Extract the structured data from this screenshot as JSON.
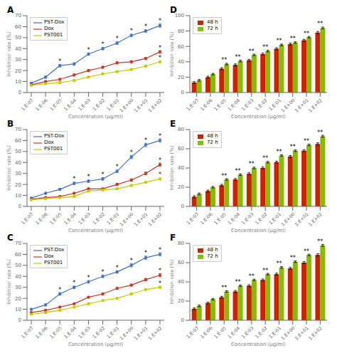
{
  "chart_data": [
    {
      "type": "line",
      "title": "A",
      "xlabel": "Concentration (μg/ml)",
      "ylabel": "Inhibition rate (%)",
      "categories": [
        "1.E-07",
        "1.E-06",
        "1.E-05",
        "1.E-04",
        "1.E-03",
        "1.E-02",
        "1.E-01",
        "1.E+00",
        "1.E+01",
        "1.E+02"
      ],
      "series": [
        {
          "name": "PST-Dox",
          "color": "#4472c4",
          "marker": "o",
          "values": [
            8.5,
            14,
            24.5,
            26,
            35,
            40,
            45,
            52,
            56,
            61
          ],
          "errors": [
            0.8,
            1.0,
            1.2,
            1.2,
            1.2,
            1.2,
            1.2,
            1.2,
            1.2,
            1.5
          ]
        },
        {
          "name": "Dox",
          "color": "#c0392b",
          "marker": "o",
          "values": [
            7,
            10,
            12,
            16,
            20,
            23,
            27,
            28,
            31,
            37
          ],
          "errors": [
            0.8,
            0.8,
            1.0,
            1.0,
            1.0,
            1.0,
            1.0,
            1.0,
            1.0,
            1.2
          ]
        },
        {
          "name": "PST001",
          "color": "#c8c800",
          "marker": "o",
          "values": [
            6.5,
            8,
            9,
            11,
            14,
            17,
            19,
            21,
            24,
            28
          ],
          "errors": [
            0.6,
            0.6,
            0.8,
            0.8,
            0.8,
            0.8,
            0.8,
            0.8,
            0.8,
            1.0
          ]
        }
      ],
      "annotations": [
        {
          "text": "*",
          "series": "PST-Dox",
          "category": "1.E-05"
        },
        {
          "text": "*",
          "series": "PST-Dox",
          "category": "1.E-03"
        },
        {
          "text": "*",
          "series": "PST-Dox",
          "category": "1.E-02"
        },
        {
          "text": "*",
          "series": "PST-Dox",
          "category": "1.E-01"
        },
        {
          "text": "*",
          "series": "PST-Dox",
          "category": "1.E+00"
        },
        {
          "text": "*",
          "series": "PST-Dox",
          "category": "1.E+01"
        },
        {
          "text": "*",
          "series": "PST-Dox",
          "category": "1.E+02"
        },
        {
          "text": "*",
          "series": "Dox",
          "category": "1.E+02"
        },
        {
          "text": "*",
          "series": "PST001",
          "category": "1.E+02"
        }
      ],
      "ylim": [
        0,
        70
      ],
      "yticks": [
        0,
        10,
        20,
        30,
        40,
        50,
        60,
        70
      ],
      "legend": "upper left"
    },
    {
      "type": "bar",
      "title": "D",
      "xlabel": "Concentration (μg/ml)",
      "ylabel": "Inhibition rate (%)",
      "categories": [
        "1.E-07",
        "1.E-06",
        "1.E-05",
        "1.E-04",
        "1.E-03",
        "1.E-02",
        "1.E-01",
        "1.E+00",
        "1.E+01",
        "1.E+02"
      ],
      "series": [
        {
          "name": "48 h",
          "color": "#cc2200",
          "values": [
            13,
            20,
            31,
            36,
            42,
            50,
            57,
            63,
            68,
            78
          ],
          "errors": [
            1.2,
            1.2,
            1.2,
            1.2,
            1.2,
            1.2,
            1.2,
            1.2,
            1.2,
            1.5
          ]
        },
        {
          "name": "72 h",
          "color": "#88bb00",
          "values": [
            16,
            24,
            37,
            41,
            49,
            54,
            62,
            65,
            72,
            84
          ],
          "errors": [
            1.0,
            1.0,
            1.0,
            1.0,
            1.0,
            1.0,
            1.0,
            1.0,
            1.0,
            1.2
          ]
        }
      ],
      "annotations": [
        {
          "text": "**",
          "category": "1.E-05"
        },
        {
          "text": "**",
          "category": "1.E-04"
        },
        {
          "text": "**",
          "category": "1.E-03"
        },
        {
          "text": "**",
          "category": "1.E-02"
        },
        {
          "text": "**",
          "category": "1.E-01"
        },
        {
          "text": "**",
          "category": "1.E+00"
        },
        {
          "text": "**",
          "category": "1.E+01"
        },
        {
          "text": "**",
          "category": "1.E+02"
        }
      ],
      "ylim": [
        0,
        100
      ],
      "yticks": [
        0,
        20,
        40,
        60,
        80,
        100
      ],
      "legend": "upper left"
    },
    {
      "type": "line",
      "title": "B",
      "xlabel": "Concentration (μg/ml)",
      "ylabel": "Inhibition rate (%)",
      "categories": [
        "1.E-07",
        "1.E-06",
        "1.E-05",
        "1.E-04",
        "1.E-03",
        "1.E-02",
        "1.E-01",
        "1.E+00",
        "1.E+01",
        "1.E+02"
      ],
      "series": [
        {
          "name": "PST-Dox",
          "color": "#4472c4",
          "marker": "o",
          "values": [
            7.5,
            12,
            15.5,
            21,
            23,
            25,
            32,
            45,
            56,
            60
          ],
          "errors": [
            0.8,
            1.0,
            1.0,
            1.2,
            1.2,
            1.2,
            1.2,
            1.5,
            1.5,
            1.5
          ]
        },
        {
          "name": "Dox",
          "color": "#c0392b",
          "marker": "o",
          "values": [
            6.5,
            8,
            9,
            12,
            16,
            16,
            20,
            24,
            30,
            38
          ],
          "errors": [
            0.6,
            0.8,
            0.8,
            0.8,
            0.8,
            0.8,
            1.0,
            1.0,
            1.2,
            1.5
          ]
        },
        {
          "name": "PST001",
          "color": "#c8c800",
          "marker": "o",
          "values": [
            6,
            7,
            8,
            9,
            14,
            15,
            16,
            19,
            22,
            25
          ],
          "errors": [
            0.5,
            0.6,
            0.6,
            0.7,
            0.8,
            0.8,
            0.8,
            0.8,
            0.8,
            1.0
          ]
        }
      ],
      "annotations": [
        {
          "text": "*",
          "series": "PST-Dox",
          "category": "1.E-04"
        },
        {
          "text": "*",
          "series": "PST-Dox",
          "category": "1.E-03"
        },
        {
          "text": "*",
          "series": "PST-Dox",
          "category": "1.E-02"
        },
        {
          "text": "*",
          "series": "PST-Dox",
          "category": "1.E-01"
        },
        {
          "text": "*",
          "series": "PST-Dox",
          "category": "1.E+00"
        },
        {
          "text": "*",
          "series": "PST-Dox",
          "category": "1.E+01"
        },
        {
          "text": "*",
          "series": "PST-Dox",
          "category": "1.E+02"
        },
        {
          "text": "*",
          "series": "Dox",
          "category": "1.E+02"
        },
        {
          "text": "*",
          "series": "PST001",
          "category": "1.E+02"
        }
      ],
      "ylim": [
        0,
        70
      ],
      "yticks": [
        0,
        10,
        20,
        30,
        40,
        50,
        60,
        70
      ],
      "legend": "upper left"
    },
    {
      "type": "bar",
      "title": "E",
      "xlabel": "Concentration (μg/ml)",
      "ylabel": "Inhibition rate (%)",
      "categories": [
        "1.E-07",
        "1.E-06",
        "1.E-05",
        "1.E-04",
        "1.E-03",
        "1.E-02",
        "1.E-01",
        "1.E+00",
        "1.E+01",
        "1.E+02"
      ],
      "series": [
        {
          "name": "48 h",
          "color": "#cc2200",
          "values": [
            10,
            16,
            22,
            28,
            34,
            40,
            46,
            52,
            58,
            65
          ],
          "errors": [
            1.0,
            1.0,
            1.0,
            1.0,
            1.0,
            1.0,
            1.0,
            1.0,
            1.0,
            1.2
          ]
        },
        {
          "name": "72 h",
          "color": "#88bb00",
          "values": [
            13,
            20,
            28,
            33,
            40,
            46,
            53,
            58,
            64,
            73
          ],
          "errors": [
            0.8,
            0.8,
            0.8,
            0.8,
            0.8,
            0.8,
            0.8,
            0.8,
            0.8,
            1.0
          ]
        }
      ],
      "annotations": [
        {
          "text": "**",
          "category": "1.E-05"
        },
        {
          "text": "**",
          "category": "1.E-04"
        },
        {
          "text": "**",
          "category": "1.E-03"
        },
        {
          "text": "**",
          "category": "1.E-02"
        },
        {
          "text": "**",
          "category": "1.E-01"
        },
        {
          "text": "**",
          "category": "1.E+00"
        },
        {
          "text": "**",
          "category": "1.E+01"
        },
        {
          "text": "**",
          "category": "1.E+02"
        }
      ],
      "ylim": [
        0,
        80
      ],
      "yticks": [
        0,
        20,
        40,
        60,
        80
      ],
      "legend": "upper left"
    },
    {
      "type": "line",
      "title": "C",
      "xlabel": "Concentration (μg/ml)",
      "ylabel": "Inhibition rate (%)",
      "categories": [
        "1.E-07",
        "1.E-06",
        "1.E-05",
        "1.E-04",
        "1.E-03",
        "1.E-02",
        "1.E-01",
        "1.E+00",
        "1.E+01",
        "1.E+02"
      ],
      "series": [
        {
          "name": "PST-Dox",
          "color": "#4472c4",
          "marker": "o",
          "values": [
            10,
            14,
            24,
            30,
            35,
            40,
            44,
            50,
            57,
            60
          ],
          "errors": [
            0.8,
            1.0,
            1.2,
            1.2,
            1.2,
            1.2,
            1.2,
            1.5,
            1.5,
            1.5
          ]
        },
        {
          "name": "Dox",
          "color": "#c0392b",
          "marker": "o",
          "values": [
            7,
            9,
            12,
            15,
            21,
            24,
            29,
            32,
            37,
            41
          ],
          "errors": [
            0.6,
            0.8,
            0.8,
            0.8,
            0.8,
            0.8,
            1.0,
            1.0,
            1.2,
            1.5
          ]
        },
        {
          "name": "PST001",
          "color": "#c8c800",
          "marker": "o",
          "values": [
            5.5,
            7,
            9,
            12,
            15,
            18,
            20,
            24,
            28,
            30
          ],
          "errors": [
            0.5,
            0.6,
            0.6,
            0.7,
            0.8,
            0.8,
            0.8,
            0.8,
            0.8,
            1.0
          ]
        }
      ],
      "annotations": [
        {
          "text": "*",
          "series": "PST-Dox",
          "category": "1.E-05"
        },
        {
          "text": "*",
          "series": "PST-Dox",
          "category": "1.E-04"
        },
        {
          "text": "*",
          "series": "PST-Dox",
          "category": "1.E-03"
        },
        {
          "text": "*",
          "series": "PST-Dox",
          "category": "1.E-02"
        },
        {
          "text": "*",
          "series": "PST-Dox",
          "category": "1.E-01"
        },
        {
          "text": "*",
          "series": "PST-Dox",
          "category": "1.E+00"
        },
        {
          "text": "*",
          "series": "PST-Dox",
          "category": "1.E+01"
        },
        {
          "text": "*",
          "series": "PST-Dox",
          "category": "1.E+02"
        },
        {
          "text": "*",
          "series": "Dox",
          "category": "1.E+02"
        },
        {
          "text": "*",
          "series": "PST001",
          "category": "1.E+02"
        }
      ],
      "ylim": [
        0,
        70
      ],
      "yticks": [
        0,
        10,
        20,
        30,
        40,
        50,
        60,
        70
      ],
      "legend": "upper left"
    },
    {
      "type": "bar",
      "title": "F",
      "xlabel": "Concentration (μg/ml)",
      "ylabel": "Inhibition rate (%)",
      "categories": [
        "1.E-07",
        "1.E-06",
        "1.E-05",
        "1.E-04",
        "1.E-03",
        "1.E-02",
        "1.E-01",
        "1.E+00",
        "1.E+01",
        "1.E+02"
      ],
      "series": [
        {
          "name": "48 h",
          "color": "#cc2200",
          "values": [
            12,
            18,
            24,
            30,
            36,
            42,
            48,
            54,
            60,
            68
          ],
          "errors": [
            1.0,
            1.0,
            1.0,
            1.0,
            1.0,
            1.0,
            1.0,
            1.0,
            1.0,
            1.2
          ]
        },
        {
          "name": "72 h",
          "color": "#88bb00",
          "values": [
            15,
            22,
            30,
            36,
            42,
            48,
            55,
            61,
            68,
            78
          ],
          "errors": [
            0.8,
            0.8,
            0.8,
            0.8,
            0.8,
            0.8,
            0.8,
            0.8,
            0.8,
            1.0
          ]
        }
      ],
      "annotations": [
        {
          "text": "**",
          "category": "1.E-05"
        },
        {
          "text": "**",
          "category": "1.E-04"
        },
        {
          "text": "**",
          "category": "1.E-03"
        },
        {
          "text": "**",
          "category": "1.E-02"
        },
        {
          "text": "**",
          "category": "1.E-01"
        },
        {
          "text": "**",
          "category": "1.E+00"
        },
        {
          "text": "**",
          "category": "1.E+01"
        },
        {
          "text": "**",
          "category": "1.E+02"
        }
      ],
      "ylim": [
        0,
        80
      ],
      "yticks": [
        0,
        20,
        40,
        60,
        80
      ],
      "legend": "upper left"
    }
  ]
}
